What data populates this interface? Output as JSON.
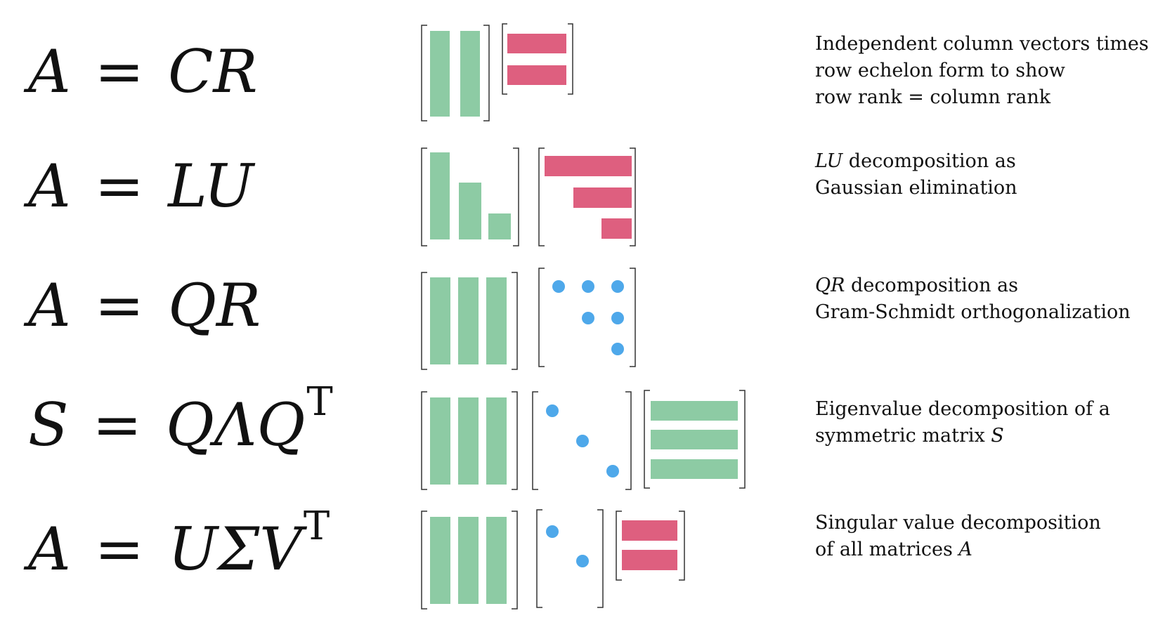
{
  "rows": [
    {
      "equation": {
        "lhs": "A",
        "rhs": "CR",
        "sup": ""
      },
      "description": [
        {
          "text": "Independent column vectors times",
          "italic": false
        },
        {
          "text": "row echelon form to show",
          "italic": false
        },
        {
          "text": "row rank = column rank",
          "italic": false
        }
      ]
    },
    {
      "equation": {
        "lhs": "A",
        "rhs": "LU",
        "sup": ""
      },
      "description": [
        {
          "text": "LU",
          "italic": true,
          "after": " decomposition as"
        },
        {
          "text": "Gaussian elimination",
          "italic": false
        }
      ]
    },
    {
      "equation": {
        "lhs": "A",
        "rhs": "QR",
        "sup": ""
      },
      "description": [
        {
          "text": "QR",
          "italic": true,
          "after": " decomposition as"
        },
        {
          "text": "Gram-Schmidt orthogonalization",
          "italic": false
        }
      ]
    },
    {
      "equation": {
        "lhs": "S",
        "rhs": "QΛQ",
        "sup": "T"
      },
      "description": [
        {
          "text": "Eigenvalue decomposition of a",
          "italic": false
        },
        {
          "text": "symmetric matrix ",
          "italic": false,
          "italic_tail": "S"
        }
      ]
    },
    {
      "equation": {
        "lhs": "A",
        "rhs": "UΣV",
        "sup": "T"
      },
      "description": [
        {
          "text": "Singular value decomposition",
          "italic": false
        },
        {
          "text": "of all matrices ",
          "italic": false,
          "italic_tail": "A"
        }
      ]
    }
  ],
  "equals_sign": "=",
  "colors": {
    "column_vectors": "#8dcba4",
    "row_vectors": "#de5f7f",
    "diagonal_entries": "#4ea8ea",
    "bracket": "#333333"
  }
}
